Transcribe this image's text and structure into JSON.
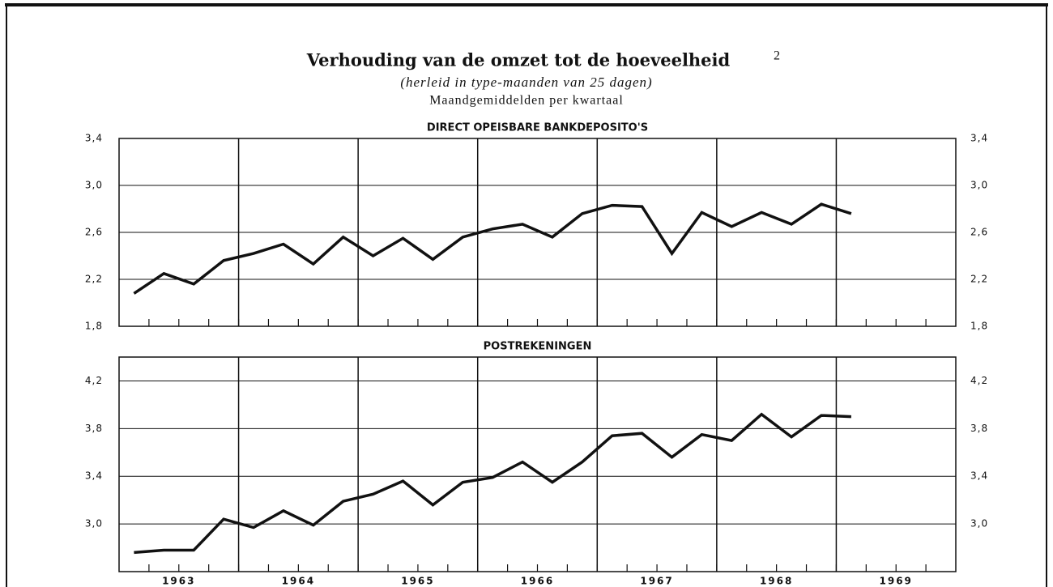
{
  "header": {
    "title": "Verhouding van de omzet tot de hoeveelheid",
    "title_note": "2",
    "subtitle": "(herleid in type-maanden van 25 dagen)",
    "subtitle2": "Maandgemiddelden per kwartaal"
  },
  "chart_data": [
    {
      "type": "line",
      "title": "DIRECT OPEISBARE BANKDEPOSITO'S",
      "color": "#111111",
      "x": [
        1963.125,
        1963.375,
        1963.625,
        1963.875,
        1964.125,
        1964.375,
        1964.625,
        1964.875,
        1965.125,
        1965.375,
        1965.625,
        1965.875,
        1966.125,
        1966.375,
        1966.625,
        1966.875,
        1967.125,
        1967.375,
        1967.625,
        1967.875,
        1968.125,
        1968.375,
        1968.625,
        1968.875,
        1969.125
      ],
      "values": [
        2.08,
        2.25,
        2.16,
        2.36,
        2.42,
        2.5,
        2.33,
        2.56,
        2.4,
        2.55,
        2.37,
        2.56,
        2.63,
        2.67,
        2.56,
        2.76,
        2.83,
        2.82,
        2.42,
        2.77,
        2.65,
        2.77,
        2.67,
        2.84,
        2.76
      ],
      "xlim": [
        1963,
        1970
      ],
      "xticks": [
        1964,
        1965,
        1966,
        1967,
        1968,
        1969
      ],
      "ylim": [
        1.8,
        3.4
      ],
      "yticks": [
        {
          "value": 1.8,
          "label": "1,8"
        },
        {
          "value": 2.2,
          "label": "2,2"
        },
        {
          "value": 2.6,
          "label": "2,6"
        },
        {
          "value": 3.0,
          "label": "3,0"
        },
        {
          "value": 3.4,
          "label": "3,4"
        }
      ],
      "grid": true
    },
    {
      "type": "line",
      "title": "POSTREKENINGEN",
      "color": "#111111",
      "x": [
        1963.125,
        1963.375,
        1963.625,
        1963.875,
        1964.125,
        1964.375,
        1964.625,
        1964.875,
        1965.125,
        1965.375,
        1965.625,
        1965.875,
        1966.125,
        1966.375,
        1966.625,
        1966.875,
        1967.125,
        1967.375,
        1967.625,
        1967.875,
        1968.125,
        1968.375,
        1968.625,
        1968.875,
        1969.125
      ],
      "values": [
        2.76,
        2.78,
        2.78,
        3.04,
        2.97,
        3.11,
        2.99,
        3.19,
        3.25,
        3.36,
        3.16,
        3.35,
        3.39,
        3.52,
        3.35,
        3.52,
        3.74,
        3.76,
        3.56,
        3.75,
        3.7,
        3.92,
        3.73,
        3.91,
        3.9
      ],
      "categories": [
        "1963",
        "1964",
        "1965",
        "1966",
        "1967",
        "1968",
        "1969"
      ],
      "xlim": [
        1963,
        1970
      ],
      "xticks": [
        1964,
        1965,
        1966,
        1967,
        1968,
        1969
      ],
      "ylim": [
        2.6,
        4.4
      ],
      "yticks": [
        {
          "value": 3.0,
          "label": "3,0"
        },
        {
          "value": 3.4,
          "label": "3,4"
        },
        {
          "value": 3.8,
          "label": "3,8"
        },
        {
          "value": 4.2,
          "label": "4,2"
        }
      ],
      "grid": true
    }
  ]
}
